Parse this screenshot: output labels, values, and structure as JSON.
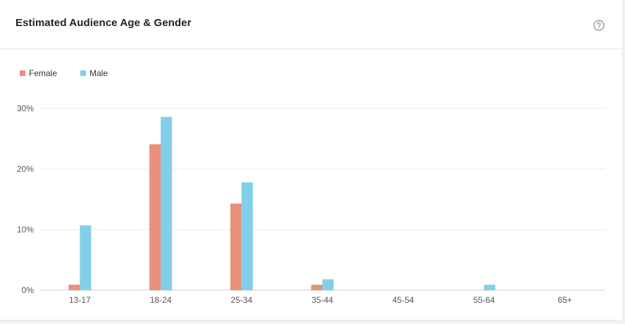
{
  "header": {
    "title": "Estimated Audience Age & Gender",
    "help_icon": "question-circle-icon"
  },
  "colors": {
    "female": "#e8907a",
    "male": "#82cfea",
    "grid": "#ebebeb",
    "axis": "#cccccc"
  },
  "chart_data": {
    "type": "bar",
    "title": "Estimated Audience Age & Gender",
    "categories": [
      "13-17",
      "18-24",
      "25-34",
      "35-44",
      "45-54",
      "55-64",
      "65+"
    ],
    "series": [
      {
        "name": "Female",
        "values": [
          0.9,
          24.1,
          14.3,
          0.9,
          0,
          0,
          0
        ]
      },
      {
        "name": "Male",
        "values": [
          10.7,
          28.6,
          17.8,
          1.8,
          0,
          0.9,
          0
        ]
      }
    ],
    "y_ticks": [
      "0%",
      "10%",
      "20%",
      "30%"
    ],
    "ylim": [
      0,
      30
    ],
    "xlabel": "",
    "ylabel": "",
    "grid": true,
    "legend_position": "top-left"
  }
}
